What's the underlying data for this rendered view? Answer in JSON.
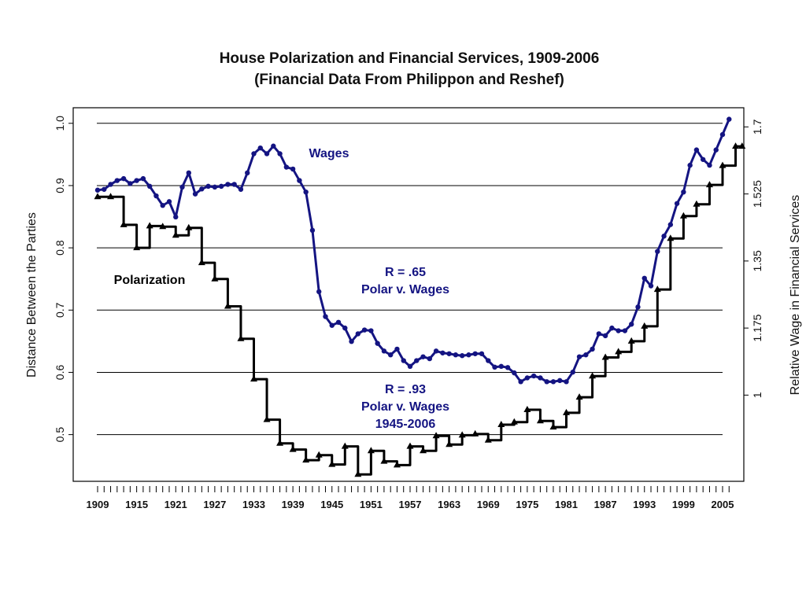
{
  "chart_data": {
    "type": "line",
    "title": "House Polarization and Financial Services, 1909-2006",
    "subtitle": "(Financial Data From Philippon and Reshef)",
    "ylabel": "Distance Between the Parties",
    "y2label": "Relative Wage in Financial Services",
    "ylim": [
      0.425,
      1.025
    ],
    "y2lim": [
      0.775,
      1.75
    ],
    "yticks": [
      "0.5",
      "0.6",
      "0.7",
      "0.8",
      "0.9",
      "1.0"
    ],
    "y2ticks": [
      "1",
      "1.175",
      "1.35",
      "1.525",
      "1.7"
    ],
    "xticks": [
      "1909",
      "1915",
      "1921",
      "1927",
      "1933",
      "1939",
      "1945",
      "1951",
      "1957",
      "1963",
      "1969",
      "1975",
      "1981",
      "1987",
      "1993",
      "1999",
      "2005"
    ],
    "grid": "horizontal",
    "colors": {
      "polarization": "#000000",
      "wages": "#141482"
    },
    "annotations": {
      "wages": "Wages",
      "polarization": "Polarization",
      "r1_line1": "R = .65",
      "r1_line2": "Polar v. Wages",
      "r2_line1": "R = .93",
      "r2_line2": "Polar v. Wages",
      "r2_line3": "1945-2006"
    },
    "series": [
      {
        "name": "Polarization",
        "axis": "left",
        "marker": "triangle",
        "points": [
          [
            1909,
            0.882
          ],
          [
            1911,
            0.882
          ],
          [
            1913,
            0.837
          ],
          [
            1915,
            0.8
          ],
          [
            1917,
            0.835
          ],
          [
            1919,
            0.834
          ],
          [
            1921,
            0.82
          ],
          [
            1923,
            0.832
          ],
          [
            1925,
            0.776
          ],
          [
            1927,
            0.75
          ],
          [
            1929,
            0.706
          ],
          [
            1931,
            0.654
          ],
          [
            1933,
            0.589
          ],
          [
            1935,
            0.524
          ],
          [
            1937,
            0.486
          ],
          [
            1939,
            0.476
          ],
          [
            1941,
            0.459
          ],
          [
            1943,
            0.467
          ],
          [
            1945,
            0.452
          ],
          [
            1947,
            0.481
          ],
          [
            1949,
            0.436
          ],
          [
            1951,
            0.474
          ],
          [
            1953,
            0.457
          ],
          [
            1955,
            0.451
          ],
          [
            1957,
            0.481
          ],
          [
            1959,
            0.474
          ],
          [
            1961,
            0.498
          ],
          [
            1963,
            0.484
          ],
          [
            1965,
            0.499
          ],
          [
            1967,
            0.501
          ],
          [
            1969,
            0.491
          ],
          [
            1971,
            0.516
          ],
          [
            1973,
            0.52
          ],
          [
            1975,
            0.54
          ],
          [
            1977,
            0.522
          ],
          [
            1979,
            0.512
          ],
          [
            1981,
            0.535
          ],
          [
            1983,
            0.56
          ],
          [
            1985,
            0.594
          ],
          [
            1987,
            0.624
          ],
          [
            1989,
            0.633
          ],
          [
            1991,
            0.65
          ],
          [
            1993,
            0.674
          ],
          [
            1995,
            0.733
          ],
          [
            1997,
            0.815
          ],
          [
            1999,
            0.851
          ],
          [
            2001,
            0.87
          ],
          [
            2003,
            0.901
          ],
          [
            2005,
            0.932
          ],
          [
            2007,
            0.963
          ]
        ]
      },
      {
        "name": "Wages",
        "axis": "right",
        "marker": "dot",
        "points": [
          [
            1909,
            1.535
          ],
          [
            1910,
            1.537
          ],
          [
            1911,
            1.55
          ],
          [
            1912,
            1.56
          ],
          [
            1913,
            1.565
          ],
          [
            1914,
            1.552
          ],
          [
            1915,
            1.56
          ],
          [
            1916,
            1.565
          ],
          [
            1917,
            1.545
          ],
          [
            1918,
            1.52
          ],
          [
            1919,
            1.495
          ],
          [
            1920,
            1.505
          ],
          [
            1921,
            1.465
          ],
          [
            1922,
            1.543
          ],
          [
            1923,
            1.58
          ],
          [
            1924,
            1.525
          ],
          [
            1925,
            1.538
          ],
          [
            1926,
            1.545
          ],
          [
            1927,
            1.543
          ],
          [
            1928,
            1.545
          ],
          [
            1929,
            1.55
          ],
          [
            1930,
            1.55
          ],
          [
            1931,
            1.537
          ],
          [
            1932,
            1.58
          ],
          [
            1933,
            1.63
          ],
          [
            1934,
            1.645
          ],
          [
            1935,
            1.63
          ],
          [
            1936,
            1.65
          ],
          [
            1937,
            1.63
          ],
          [
            1938,
            1.595
          ],
          [
            1939,
            1.59
          ],
          [
            1940,
            1.56
          ],
          [
            1941,
            1.53
          ],
          [
            1942,
            1.43
          ],
          [
            1943,
            1.27
          ],
          [
            1944,
            1.205
          ],
          [
            1945,
            1.182
          ],
          [
            1946,
            1.19
          ],
          [
            1947,
            1.175
          ],
          [
            1948,
            1.14
          ],
          [
            1949,
            1.16
          ],
          [
            1950,
            1.17
          ],
          [
            1951,
            1.168
          ],
          [
            1952,
            1.135
          ],
          [
            1953,
            1.115
          ],
          [
            1954,
            1.105
          ],
          [
            1955,
            1.12
          ],
          [
            1956,
            1.09
          ],
          [
            1957,
            1.075
          ],
          [
            1958,
            1.09
          ],
          [
            1959,
            1.1
          ],
          [
            1960,
            1.095
          ],
          [
            1961,
            1.115
          ],
          [
            1962,
            1.11
          ],
          [
            1963,
            1.108
          ],
          [
            1964,
            1.105
          ],
          [
            1965,
            1.103
          ],
          [
            1966,
            1.105
          ],
          [
            1967,
            1.108
          ],
          [
            1968,
            1.108
          ],
          [
            1969,
            1.09
          ],
          [
            1970,
            1.073
          ],
          [
            1971,
            1.075
          ],
          [
            1972,
            1.072
          ],
          [
            1973,
            1.058
          ],
          [
            1974,
            1.035
          ],
          [
            1975,
            1.045
          ],
          [
            1976,
            1.05
          ],
          [
            1977,
            1.045
          ],
          [
            1978,
            1.035
          ],
          [
            1979,
            1.035
          ],
          [
            1980,
            1.038
          ],
          [
            1981,
            1.035
          ],
          [
            1982,
            1.06
          ],
          [
            1983,
            1.1
          ],
          [
            1984,
            1.105
          ],
          [
            1985,
            1.12
          ],
          [
            1986,
            1.16
          ],
          [
            1987,
            1.155
          ],
          [
            1988,
            1.175
          ],
          [
            1989,
            1.168
          ],
          [
            1990,
            1.168
          ],
          [
            1991,
            1.185
          ],
          [
            1992,
            1.23
          ],
          [
            1993,
            1.305
          ],
          [
            1994,
            1.285
          ],
          [
            1995,
            1.375
          ],
          [
            1996,
            1.415
          ],
          [
            1997,
            1.445
          ],
          [
            1998,
            1.5
          ],
          [
            1999,
            1.53
          ],
          [
            2000,
            1.6
          ],
          [
            2001,
            1.64
          ],
          [
            2002,
            1.615
          ],
          [
            2003,
            1.6
          ],
          [
            2004,
            1.64
          ],
          [
            2005,
            1.68
          ],
          [
            2006,
            1.72
          ]
        ]
      }
    ]
  }
}
